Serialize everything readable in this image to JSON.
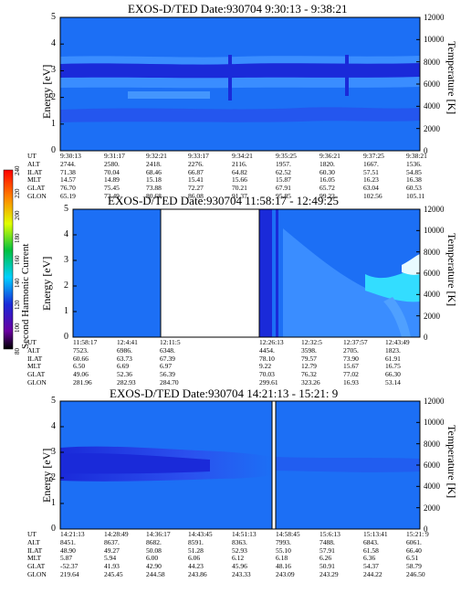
{
  "panels": [
    {
      "title": "EXOS-D/TED   Date:930704   9:30:13 - 9:38:21",
      "ylabel_left": "Energy [eV]",
      "ylabel_right": "Temperature [K]",
      "left_ticks": [
        "0",
        "1",
        "2",
        "3",
        "4",
        "5"
      ],
      "right_ticks": [
        "0",
        "2000",
        "4000",
        "6000",
        "8000",
        "10000",
        "12000"
      ],
      "orbit_labels": [
        "UT",
        "ALT",
        "ILAT",
        "MLT",
        "GLAT",
        "GLON"
      ],
      "orbit_cols": [
        [
          "9:30:13",
          "2744.",
          "71.38",
          "14.57",
          "76.70",
          "65.19"
        ],
        [
          "9:31:17",
          "2580.",
          "70.04",
          "14.89",
          "75.45",
          "73.49"
        ],
        [
          "9:32:21",
          "2418.",
          "68.46",
          "15.18",
          "73.88",
          "80.68"
        ],
        [
          "9:33:17",
          "2276.",
          "66.87",
          "15.41",
          "72.27",
          "86.08"
        ],
        [
          "9:34:21",
          "2116.",
          "64.82",
          "15.66",
          "70.21",
          "91.37"
        ],
        [
          "9:35:25",
          "1957.",
          "62.52",
          "15.87",
          "67.91",
          "95.85"
        ],
        [
          "9:36:21",
          "1820.",
          "60.30",
          "16.05",
          "65.72",
          "99.22"
        ],
        [
          "9:37:25",
          "1667.",
          "57.51",
          "16.23",
          "63.04",
          "102.56"
        ],
        [
          "9:38:21",
          "1536.",
          "54.85",
          "16.38",
          "60.53",
          "105.11"
        ]
      ]
    },
    {
      "title": "EXOS-D/TED   Date:930704   11:58:17 - 12:49:25",
      "ylabel_left": "Energy [eV]",
      "ylabel_right": "Temperature [K]",
      "left_ticks": [
        "0",
        "1",
        "2",
        "3",
        "4",
        "5"
      ],
      "right_ticks": [
        "0",
        "2000",
        "4000",
        "6000",
        "8000",
        "10000",
        "12000"
      ],
      "orbit_labels": [
        "UT",
        "ALT",
        "ILAT",
        "MLT",
        "GLAT",
        "GLON"
      ],
      "orbit_cols": [
        [
          "11:58:17",
          "7523.",
          "60.66",
          "6.50",
          "49.06",
          "281.96"
        ],
        [
          "12:4:41",
          "6986.",
          "63.73",
          "6.69",
          "52.36",
          "282.93"
        ],
        [
          "12:11:5",
          "6348.",
          "67.39",
          "6.97",
          "56.39",
          "284.70"
        ],
        [
          "12:26:13",
          "4454.",
          "78.10",
          "9.22",
          "70.03",
          "299.61"
        ],
        [
          "12:32:5",
          "3598.",
          "79.57",
          "12.79",
          "76.32",
          "323.26"
        ],
        [
          "12:37:57",
          "2705.",
          "73.90",
          "15.67",
          "77.02",
          "16.93"
        ],
        [
          "12:43:49",
          "1823.",
          "61.91",
          "16.75",
          "66.30",
          "53.14"
        ]
      ]
    },
    {
      "title": "EXOS-D/TED   Date:930704   14:21:13 - 15:21: 9",
      "ylabel_left": "Energy [eV]",
      "ylabel_right": "Temperature [K]",
      "left_ticks": [
        "0",
        "1",
        "2",
        "3",
        "4",
        "5"
      ],
      "right_ticks": [
        "0",
        "2000",
        "4000",
        "6000",
        "8000",
        "10000",
        "12000"
      ],
      "orbit_labels": [
        "UT",
        "ALT",
        "ILAT",
        "MLT",
        "GLAT",
        "GLON"
      ],
      "orbit_cols": [
        [
          "14:21:13",
          "8451.",
          "48.90",
          "5.87",
          "-52.37",
          "219.64"
        ],
        [
          "14:28:49",
          "8637.",
          "49.27",
          "5.94",
          "41.93",
          "245.45"
        ],
        [
          "14:36:17",
          "8682.",
          "50.08",
          "6.00",
          "42.90",
          "244.58"
        ],
        [
          "14:43:45",
          "8591.",
          "51.28",
          "6.06",
          "44.23",
          "243.86"
        ],
        [
          "14:51:13",
          "8363.",
          "52.93",
          "6.12",
          "45.96",
          "243.33"
        ],
        [
          "14:58:45",
          "7993.",
          "55.10",
          "6.18",
          "48.16",
          "243.09"
        ],
        [
          "15:6:13",
          "7488.",
          "57.91",
          "6.26",
          "50.91",
          "243.29"
        ],
        [
          "15:13:41",
          "6843.",
          "61.58",
          "6.36",
          "54.37",
          "244.22"
        ],
        [
          "15:21: 9",
          "6061.",
          "66.40",
          "6.51",
          "58.79",
          "246.50"
        ]
      ]
    }
  ],
  "colorbar": {
    "label": "Second Harmonic Current",
    "ticks": [
      "80",
      "100",
      "120",
      "140",
      "160",
      "180",
      "200",
      "220",
      "240"
    ]
  },
  "chart_data": [
    {
      "type": "heatmap",
      "title": "EXOS-D/TED   Date:930704   9:30:13 - 9:38:21",
      "ylabel": "Energy [eV]",
      "ylabel_right": "Temperature [K]",
      "ylim": [
        0,
        5
      ],
      "ylim_right": [
        0,
        12000
      ],
      "x": [
        "9:30:13",
        "9:31:17",
        "9:32:21",
        "9:33:17",
        "9:34:21",
        "9:35:25",
        "9:36:21",
        "9:37:25",
        "9:38:21"
      ],
      "colorbar_label": "Second Harmonic Current",
      "colorbar_range": [
        80,
        240
      ],
      "band_energy_eV": [
        2.6,
        3.4
      ]
    },
    {
      "type": "heatmap",
      "title": "EXOS-D/TED   Date:930704   11:58:17 - 12:49:25",
      "ylabel": "Energy [eV]",
      "ylabel_right": "Temperature [K]",
      "ylim": [
        0,
        5
      ],
      "ylim_right": [
        0,
        12000
      ],
      "x": [
        "11:58:17",
        "12:4:41",
        "12:11:5",
        "12:26:13",
        "12:32:5",
        "12:37:57",
        "12:43:49"
      ],
      "colorbar_label": "Second Harmonic Current",
      "colorbar_range": [
        80,
        240
      ],
      "data_gap": [
        "12:11:5",
        "12:26:13"
      ]
    },
    {
      "type": "heatmap",
      "title": "EXOS-D/TED   Date:930704   14:21:13 - 15:21: 9",
      "ylabel": "Energy [eV]",
      "ylabel_right": "Temperature [K]",
      "ylim": [
        0,
        5
      ],
      "ylim_right": [
        0,
        12000
      ],
      "x": [
        "14:21:13",
        "14:28:49",
        "14:36:17",
        "14:43:45",
        "14:51:13",
        "14:58:45",
        "15:6:13",
        "15:13:41",
        "15:21: 9"
      ],
      "colorbar_label": "Second Harmonic Current",
      "colorbar_range": [
        80,
        240
      ],
      "band_energy_eV": [
        2.3,
        3.0
      ]
    }
  ],
  "colors": {
    "background": "#1c6ff5",
    "dark_blue": "#1a2ad9",
    "mid_blue": "#2b60ee",
    "light_blue": "#4fa0ff",
    "cyan": "#33ddff",
    "white": "#ffffff"
  }
}
